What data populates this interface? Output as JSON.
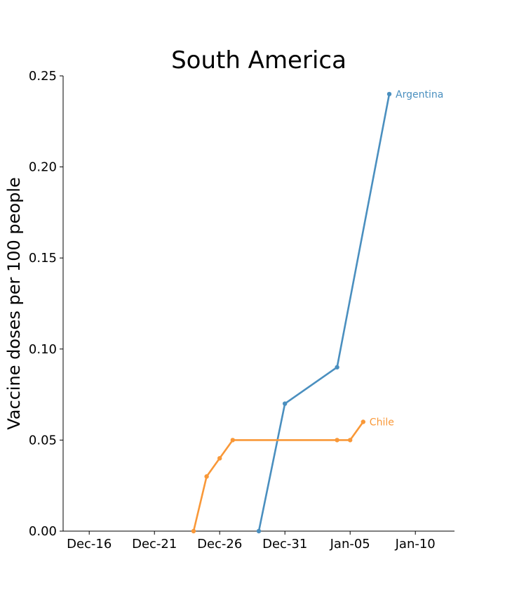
{
  "chart_data": {
    "type": "line",
    "title": "South America",
    "xlabel": "",
    "ylabel": "Vaccine doses per 100 people",
    "x_axis": "date",
    "xlim": [
      "2020-12-14",
      "2021-01-13"
    ],
    "ylim": [
      0,
      0.25
    ],
    "x_ticks": [
      {
        "date": "2020-12-16",
        "label": "Dec-16"
      },
      {
        "date": "2020-12-21",
        "label": "Dec-21"
      },
      {
        "date": "2020-12-26",
        "label": "Dec-26"
      },
      {
        "date": "2020-12-31",
        "label": "Dec-31"
      },
      {
        "date": "2021-01-05",
        "label": "Jan-05"
      },
      {
        "date": "2021-01-10",
        "label": "Jan-10"
      }
    ],
    "y_ticks": [
      {
        "value": 0.0,
        "label": "0.00"
      },
      {
        "value": 0.05,
        "label": "0.05"
      },
      {
        "value": 0.1,
        "label": "0.10"
      },
      {
        "value": 0.15,
        "label": "0.15"
      },
      {
        "value": 0.2,
        "label": "0.20"
      },
      {
        "value": 0.25,
        "label": "0.25"
      }
    ],
    "grid": false,
    "legend": "none; series labelled at line ends",
    "series": [
      {
        "name": "Argentina",
        "color": "#4a8fbf",
        "points": [
          {
            "date": "2020-12-29",
            "value": 0.0
          },
          {
            "date": "2020-12-31",
            "value": 0.07
          },
          {
            "date": "2021-01-04",
            "value": 0.09
          },
          {
            "date": "2021-01-08",
            "value": 0.24
          }
        ]
      },
      {
        "name": "Chile",
        "color": "#f99838",
        "points": [
          {
            "date": "2020-12-24",
            "value": 0.0
          },
          {
            "date": "2020-12-25",
            "value": 0.03
          },
          {
            "date": "2020-12-26",
            "value": 0.04
          },
          {
            "date": "2020-12-27",
            "value": 0.05
          },
          {
            "date": "2021-01-04",
            "value": 0.05
          },
          {
            "date": "2021-01-05",
            "value": 0.05
          },
          {
            "date": "2021-01-06",
            "value": 0.06
          }
        ]
      }
    ]
  }
}
